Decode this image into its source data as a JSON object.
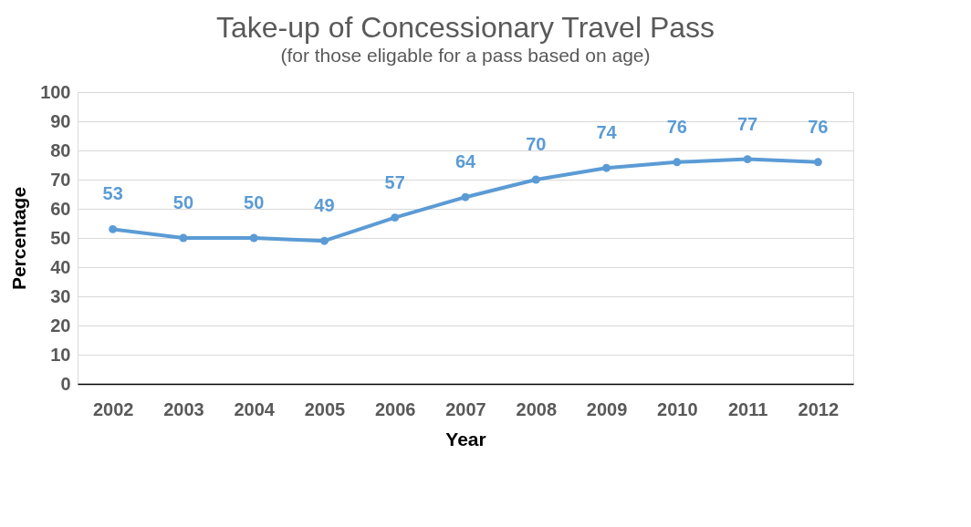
{
  "chart_data": {
    "type": "line",
    "title": "Take-up of Concessionary Travel Pass",
    "subtitle": "(for those eligable for a pass based on age)",
    "xlabel": "Year",
    "ylabel": "Percentage",
    "categories": [
      "2002",
      "2003",
      "2004",
      "2005",
      "2006",
      "2007",
      "2008",
      "2009",
      "2010",
      "2011",
      "2012"
    ],
    "series": [
      {
        "color": "#5b9bd5",
        "values": [
          53,
          50,
          50,
          49,
          57,
          64,
          70,
          74,
          76,
          77,
          76
        ]
      }
    ],
    "ylim": [
      0,
      100
    ],
    "yticks": [
      0,
      10,
      20,
      30,
      40,
      50,
      60,
      70,
      80,
      90,
      100
    ],
    "grid": "y",
    "legend": false,
    "marker": "circle",
    "line_style": "solid",
    "data_labels": true
  }
}
